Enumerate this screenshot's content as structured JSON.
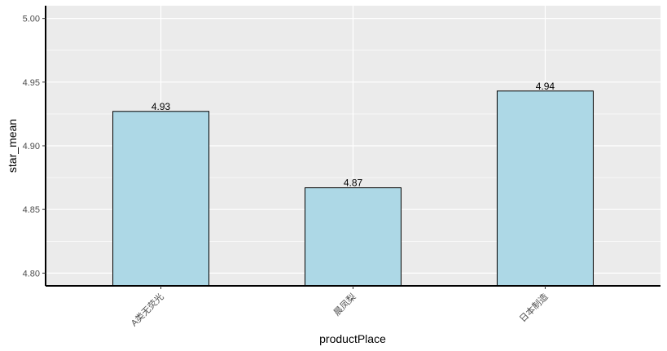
{
  "chart_data": {
    "type": "bar",
    "categories": [
      "A类无荧光",
      "晨凤梨",
      "日本制造"
    ],
    "values": [
      4.927,
      4.867,
      4.943
    ],
    "data_labels": [
      "4.93",
      "4.87",
      "4.94"
    ],
    "xlabel": "productPlace",
    "ylabel": "star_mean",
    "ylim": [
      4.79,
      5.01
    ],
    "yticks": [
      4.8,
      4.85,
      4.9,
      4.95,
      5.0
    ],
    "ytick_labels": [
      "4.80",
      "4.85",
      "4.90",
      "4.95",
      "5.00"
    ],
    "grid": true,
    "x_tick_rotation": -45,
    "colors": {
      "bar_fill": "#add8e6",
      "bar_stroke": "#000000",
      "panel_background": "#ebebeb",
      "grid": "#ffffff",
      "axis_line": "#000000"
    }
  }
}
